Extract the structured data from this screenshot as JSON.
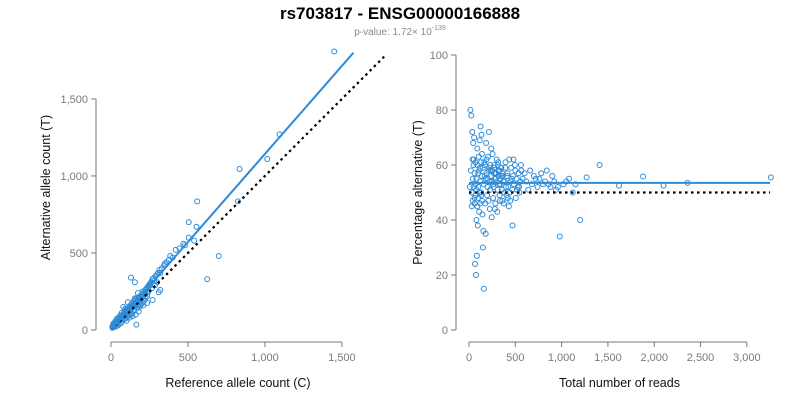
{
  "title": "rs703817 - ENSG00000166888",
  "subtitle": {
    "prefix": "p-value: 1.72× 10",
    "exponent": "-139"
  },
  "colors": {
    "points": "#2f8bd8",
    "fit_line": "#2f8bd8",
    "reference_line": "#000000",
    "axis": "#7a7a7a"
  },
  "chart_data": [
    {
      "type": "scatter",
      "xlabel": "Reference allele count (C)",
      "ylabel": "Alternative allele count (T)",
      "xlim": [
        0,
        1650
      ],
      "ylim": [
        0,
        1850
      ],
      "xticks": [
        0,
        500,
        1000,
        1500
      ],
      "xtick_labels": [
        "0",
        "500",
        "1,000",
        "1,500"
      ],
      "yticks": [
        0,
        500,
        1000,
        1500
      ],
      "ytick_labels": [
        "0",
        "500",
        "1,000",
        "1,500"
      ],
      "fit_line": {
        "x": [
          0,
          1575
        ],
        "y": [
          0,
          1800
        ],
        "style": "solid"
      },
      "reference_line": {
        "x": [
          0,
          1790
        ],
        "y": [
          0,
          1790
        ],
        "style": "dotted"
      },
      "points": [
        [
          1450,
          1808
        ],
        [
          1095,
          1270
        ],
        [
          1015,
          1110
        ],
        [
          835,
          1045
        ],
        [
          825,
          835
        ],
        [
          560,
          835
        ],
        [
          625,
          330
        ],
        [
          700,
          480
        ],
        [
          555,
          670
        ],
        [
          505,
          700
        ],
        [
          540,
          580
        ],
        [
          480,
          550
        ],
        [
          505,
          600
        ],
        [
          470,
          560
        ],
        [
          420,
          520
        ],
        [
          445,
          530
        ],
        [
          400,
          470
        ],
        [
          385,
          480
        ],
        [
          360,
          440
        ],
        [
          375,
          455
        ],
        [
          350,
          430
        ],
        [
          330,
          400
        ],
        [
          345,
          420
        ],
        [
          315,
          390
        ],
        [
          300,
          360
        ],
        [
          320,
          370
        ],
        [
          290,
          350
        ],
        [
          305,
          370
        ],
        [
          280,
          320
        ],
        [
          270,
          330
        ],
        [
          260,
          310
        ],
        [
          275,
          335
        ],
        [
          250,
          295
        ],
        [
          240,
          280
        ],
        [
          255,
          300
        ],
        [
          230,
          270
        ],
        [
          245,
          255
        ],
        [
          220,
          250
        ],
        [
          210,
          240
        ],
        [
          225,
          260
        ],
        [
          200,
          230
        ],
        [
          190,
          220
        ],
        [
          205,
          250
        ],
        [
          185,
          210
        ],
        [
          195,
          195
        ],
        [
          180,
          205
        ],
        [
          170,
          190
        ],
        [
          175,
          240
        ],
        [
          165,
          185
        ],
        [
          160,
          180
        ],
        [
          150,
          170
        ],
        [
          155,
          205
        ],
        [
          145,
          160
        ],
        [
          140,
          155
        ],
        [
          135,
          150
        ],
        [
          130,
          145
        ],
        [
          125,
          140
        ],
        [
          120,
          135
        ],
        [
          115,
          130
        ],
        [
          110,
          125
        ],
        [
          105,
          120
        ],
        [
          100,
          115
        ],
        [
          95,
          110
        ],
        [
          90,
          100
        ],
        [
          85,
          95
        ],
        [
          80,
          90
        ],
        [
          75,
          85
        ],
        [
          70,
          80
        ],
        [
          65,
          75
        ],
        [
          60,
          70
        ],
        [
          55,
          65
        ],
        [
          50,
          60
        ],
        [
          45,
          55
        ],
        [
          40,
          50
        ],
        [
          35,
          45
        ],
        [
          30,
          40
        ],
        [
          25,
          35
        ],
        [
          20,
          30
        ],
        [
          15,
          25
        ],
        [
          10,
          15
        ],
        [
          130,
          340
        ],
        [
          155,
          310
        ],
        [
          245,
          290
        ],
        [
          255,
          290
        ],
        [
          320,
          260
        ],
        [
          310,
          245
        ],
        [
          270,
          195
        ],
        [
          235,
          175
        ],
        [
          210,
          160
        ],
        [
          180,
          120
        ],
        [
          160,
          100
        ],
        [
          140,
          90
        ],
        [
          165,
          35
        ],
        [
          120,
          80
        ],
        [
          100,
          60
        ],
        [
          90,
          130
        ],
        [
          80,
          150
        ],
        [
          110,
          180
        ],
        [
          95,
          140
        ],
        [
          70,
          110
        ],
        [
          60,
          95
        ],
        [
          50,
          80
        ],
        [
          40,
          75
        ],
        [
          30,
          60
        ],
        [
          20,
          45
        ],
        [
          15,
          40
        ],
        [
          25,
          20
        ],
        [
          35,
          25
        ],
        [
          45,
          30
        ],
        [
          55,
          40
        ],
        [
          65,
          45
        ],
        [
          75,
          60
        ],
        [
          85,
          70
        ],
        [
          95,
          75
        ],
        [
          105,
          85
        ],
        [
          115,
          95
        ],
        [
          125,
          100
        ],
        [
          135,
          110
        ],
        [
          145,
          120
        ],
        [
          150,
          130
        ],
        [
          170,
          140
        ],
        [
          190,
          160
        ],
        [
          205,
          175
        ],
        [
          215,
          190
        ],
        [
          225,
          210
        ],
        [
          235,
          220
        ],
        [
          195,
          170
        ],
        [
          185,
          150
        ],
        [
          175,
          160
        ],
        [
          170,
          210
        ],
        [
          160,
          200
        ],
        [
          150,
          190
        ],
        [
          140,
          175
        ],
        [
          130,
          165
        ],
        [
          120,
          150
        ],
        [
          110,
          140
        ],
        [
          100,
          130
        ],
        [
          90,
          115
        ],
        [
          80,
          105
        ],
        [
          70,
          90
        ],
        [
          60,
          80
        ],
        [
          50,
          70
        ],
        [
          40,
          55
        ],
        [
          30,
          50
        ],
        [
          20,
          35
        ],
        [
          10,
          25
        ],
        [
          300,
          310
        ],
        [
          285,
          290
        ],
        [
          265,
          270
        ],
        [
          240,
          245
        ],
        [
          220,
          230
        ],
        [
          200,
          215
        ],
        [
          185,
          195
        ],
        [
          175,
          185
        ],
        [
          165,
          175
        ],
        [
          155,
          160
        ],
        [
          145,
          150
        ],
        [
          135,
          140
        ],
        [
          125,
          130
        ],
        [
          115,
          120
        ],
        [
          105,
          110
        ],
        [
          95,
          100
        ],
        [
          85,
          90
        ],
        [
          75,
          80
        ],
        [
          65,
          70
        ],
        [
          55,
          60
        ],
        [
          45,
          50
        ],
        [
          35,
          40
        ]
      ]
    },
    {
      "type": "scatter",
      "xlabel": "Total number of reads",
      "ylabel": "Percentage alternative (T)",
      "xlim": [
        0,
        3250
      ],
      "ylim": [
        0,
        100
      ],
      "xticks": [
        0,
        500,
        1000,
        1500,
        2000,
        2500,
        3000
      ],
      "xtick_labels": [
        "0",
        "500",
        "1,000",
        "1,500",
        "2,000",
        "2,500",
        "3,000"
      ],
      "yticks": [
        0,
        20,
        40,
        60,
        80,
        100
      ],
      "ytick_labels": [
        "0",
        "20",
        "40",
        "60",
        "80",
        "100"
      ],
      "fit_line": {
        "x": [
          0,
          3250
        ],
        "y": [
          53.5,
          53.5
        ],
        "style": "solid"
      },
      "reference_line": {
        "x": [
          0,
          3250
        ],
        "y": [
          50,
          50
        ],
        "style": "dotted"
      },
      "points": [
        [
          3260,
          55.5
        ],
        [
          2360,
          53.5
        ],
        [
          2100,
          52.5
        ],
        [
          1880,
          55.8
        ],
        [
          1620,
          52.5
        ],
        [
          1410,
          60
        ],
        [
          1270,
          55.5
        ],
        [
          1200,
          40
        ],
        [
          1150,
          53
        ],
        [
          1120,
          50
        ],
        [
          1080,
          55
        ],
        [
          1050,
          54
        ],
        [
          1020,
          53
        ],
        [
          980,
          34
        ],
        [
          960,
          52
        ],
        [
          940,
          51
        ],
        [
          920,
          54
        ],
        [
          900,
          56
        ],
        [
          880,
          52
        ],
        [
          860,
          53
        ],
        [
          840,
          58
        ],
        [
          820,
          54
        ],
        [
          800,
          53
        ],
        [
          780,
          57
        ],
        [
          760,
          55
        ],
        [
          740,
          52
        ],
        [
          720,
          55
        ],
        [
          700,
          56
        ],
        [
          680,
          53
        ],
        [
          660,
          58
        ],
        [
          640,
          51
        ],
        [
          620,
          54
        ],
        [
          600,
          57
        ],
        [
          580,
          55
        ],
        [
          560,
          60
        ],
        [
          540,
          52
        ],
        [
          520,
          51
        ],
        [
          500,
          58
        ],
        [
          480,
          62
        ],
        [
          470,
          38
        ],
        [
          460,
          55
        ],
        [
          450,
          54
        ],
        [
          440,
          50
        ],
        [
          430,
          45
        ],
        [
          420,
          48
        ],
        [
          410,
          56
        ],
        [
          400,
          52
        ],
        [
          390,
          59
        ],
        [
          380,
          50
        ],
        [
          370,
          54
        ],
        [
          360,
          47
        ],
        [
          350,
          56
        ],
        [
          340,
          53
        ],
        [
          330,
          49
        ],
        [
          320,
          58
        ],
        [
          310,
          51
        ],
        [
          300,
          62
        ],
        [
          290,
          55
        ],
        [
          280,
          44
        ],
        [
          270,
          57
        ],
        [
          260,
          48
        ],
        [
          250,
          54
        ],
        [
          240,
          66
        ],
        [
          230,
          51
        ],
        [
          220,
          59
        ],
        [
          210,
          47
        ],
        [
          200,
          55
        ],
        [
          190,
          62
        ],
        [
          180,
          35
        ],
        [
          170,
          56
        ],
        [
          160,
          15
        ],
        [
          150,
          30
        ],
        [
          140,
          64
        ],
        [
          130,
          50
        ],
        [
          120,
          59
        ],
        [
          110,
          43
        ],
        [
          100,
          57
        ],
        [
          90,
          66
        ],
        [
          80,
          40
        ],
        [
          70,
          53
        ],
        [
          60,
          48
        ],
        [
          50,
          62
        ],
        [
          40,
          55
        ],
        [
          30,
          45
        ],
        [
          20,
          58
        ],
        [
          10,
          52
        ],
        [
          15,
          80
        ],
        [
          25,
          78
        ],
        [
          35,
          72
        ],
        [
          45,
          68
        ],
        [
          55,
          70
        ],
        [
          65,
          24
        ],
        [
          75,
          20
        ],
        [
          85,
          27
        ],
        [
          95,
          38
        ],
        [
          105,
          63
        ],
        [
          115,
          69
        ],
        [
          125,
          74
        ],
        [
          135,
          71
        ],
        [
          145,
          42
        ],
        [
          155,
          36
        ],
        [
          165,
          61
        ],
        [
          175,
          46
        ],
        [
          185,
          68
        ],
        [
          195,
          49
        ],
        [
          205,
          63
        ],
        [
          215,
          72
        ],
        [
          225,
          44
        ],
        [
          235,
          58
        ],
        [
          245,
          41
        ],
        [
          255,
          64
        ],
        [
          265,
          52
        ],
        [
          275,
          60
        ],
        [
          285,
          46
        ],
        [
          295,
          57
        ],
        [
          305,
          43
        ],
        [
          315,
          61
        ],
        [
          325,
          53
        ],
        [
          335,
          47
        ],
        [
          345,
          59
        ],
        [
          355,
          51
        ],
        [
          365,
          56
        ],
        [
          375,
          46
        ],
        [
          385,
          54
        ],
        [
          395,
          61
        ],
        [
          405,
          49
        ],
        [
          415,
          57
        ],
        [
          425,
          52
        ],
        [
          435,
          62
        ],
        [
          445,
          47
        ],
        [
          455,
          59
        ],
        [
          465,
          51
        ],
        [
          475,
          56
        ],
        [
          485,
          53
        ],
        [
          495,
          60
        ],
        [
          505,
          48
        ],
        [
          515,
          55
        ],
        [
          525,
          52
        ],
        [
          535,
          57
        ],
        [
          545,
          50
        ],
        [
          555,
          54
        ],
        [
          565,
          58
        ],
        [
          40,
          62
        ],
        [
          50,
          60
        ],
        [
          60,
          57
        ],
        [
          70,
          61
        ],
        [
          80,
          55
        ],
        [
          90,
          60
        ],
        [
          100,
          52
        ],
        [
          110,
          58
        ],
        [
          120,
          54
        ],
        [
          130,
          61
        ],
        [
          140,
          56
        ],
        [
          150,
          59
        ],
        [
          160,
          53
        ],
        [
          170,
          60
        ],
        [
          180,
          55
        ],
        [
          190,
          57
        ],
        [
          200,
          52
        ],
        [
          210,
          58
        ],
        [
          220,
          54
        ],
        [
          230,
          60
        ],
        [
          240,
          56
        ],
        [
          250,
          58
        ],
        [
          260,
          53
        ],
        [
          270,
          59
        ],
        [
          280,
          55
        ],
        [
          290,
          57
        ],
        [
          300,
          54
        ],
        [
          310,
          60
        ],
        [
          320,
          56
        ],
        [
          330,
          58
        ],
        [
          340,
          55
        ],
        [
          350,
          59
        ],
        [
          360,
          57
        ],
        [
          30,
          50
        ],
        [
          40,
          47
        ],
        [
          50,
          52
        ],
        [
          60,
          46
        ],
        [
          70,
          49
        ],
        [
          80,
          51
        ],
        [
          90,
          45
        ],
        [
          100,
          48
        ],
        [
          110,
          50
        ],
        [
          120,
          46
        ],
        [
          130,
          49
        ],
        [
          140,
          47
        ]
      ]
    }
  ]
}
